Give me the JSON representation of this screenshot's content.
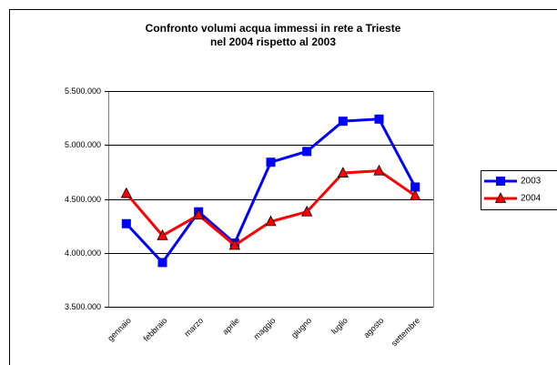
{
  "chart_data": {
    "type": "line",
    "title": [
      "Confronto volumi acqua immessi in rete a Trieste",
      "nel 2004 rispetto al 2003"
    ],
    "categories": [
      "gennaio",
      "febbraio",
      "marzo",
      "aprile",
      "maggio",
      "giugno",
      "luglio",
      "agosto",
      "settembre"
    ],
    "series": [
      {
        "name": "2003",
        "color": "#0000ff",
        "marker": "square",
        "values": [
          4270000,
          3910000,
          4380000,
          4090000,
          4840000,
          4940000,
          5220000,
          5240000,
          4610000
        ]
      },
      {
        "name": "2004",
        "color": "#ff0000",
        "marker": "triangle",
        "values": [
          4550000,
          4160000,
          4350000,
          4070000,
          4290000,
          4380000,
          4740000,
          4760000,
          4530000
        ]
      }
    ],
    "ylim": [
      3500000,
      5500000
    ],
    "yticks": [
      {
        "value": 3500000,
        "label": "3.500.000"
      },
      {
        "value": 4000000,
        "label": "4.000.000"
      },
      {
        "value": 4500000,
        "label": "4.500.000"
      },
      {
        "value": 5000000,
        "label": "5.000.000"
      },
      {
        "value": 5500000,
        "label": "5.500.000"
      }
    ],
    "grid": true,
    "legend": "right"
  }
}
